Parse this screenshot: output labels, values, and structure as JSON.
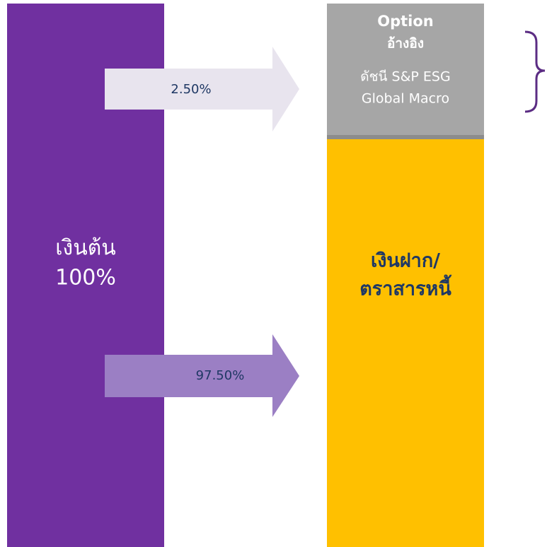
{
  "principal": {
    "lines": [
      "เงินต้น",
      "100%"
    ]
  },
  "arrows": [
    {
      "label": "2.50%"
    },
    {
      "label": "97.50%"
    }
  ],
  "option": {
    "lines": [
      "Option",
      "อ้างอิง",
      "ดัชนี S&P ESG",
      "Global Macro"
    ]
  },
  "deposit": {
    "lines": [
      "เงินฝาก/",
      "ตราสารหนี้"
    ]
  }
}
